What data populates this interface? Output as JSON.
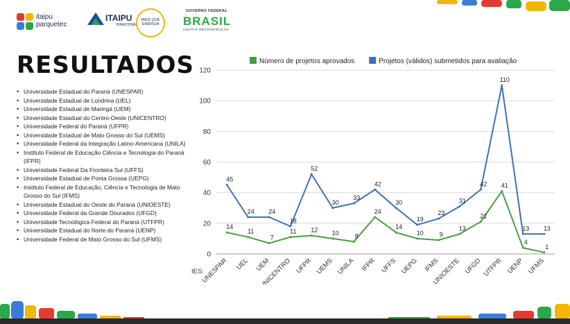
{
  "header": {
    "logo_itaipu_parquetec_line1": "itaipu",
    "logo_itaipu_parquetec_line2": "parquetec",
    "logo_itaipu_binacional": "ITAIPU",
    "logo_itaipu_binacional_sub": "BINACIONAL",
    "logo_mais_que_energia": "MAIS QUE ENERGIA",
    "logo_governo_top": "GOVERNO FEDERAL",
    "logo_governo_brasil": "BRASIL",
    "logo_governo_sub": "UNIÃO E RECONSTRUÇÃO"
  },
  "slide_title": "RESULTADOS",
  "universities": [
    "Universidade Estadual do Paraná (UNESPAR)",
    "Universidade Estadual de Londrina (UEL)",
    "Universidade Estadual de Maringá (UEM)",
    "Universidade Estadual do Centro-Oeste (UNICENTRO)",
    "Universidade Federal do Paraná (UFPR)",
    "Universidade Estadual de Mato Grosso do Sul (UEMS)",
    "Universidade Federal da Integração Latino-Americana (UNILA)",
    "Instituto Federal de Educação Ciência e Tecnologia do Paraná (IFPR)",
    "Universidade Federal Da Fronteira Sul (UFFS)",
    "Universidade Estadual de Ponta Grossa (UEPG)",
    "Instituto Federal de Educação, Ciência e Tecnologia de Mato Grosso do Sul (IFMS)",
    "Universidade Estadual do Oeste do Paraná (UNIOESTE)",
    "Universidade Federal da Grande Dourados (UFGD)",
    "Universidade Tecnológica Federal do Paraná (UTFPR)",
    "Universidade Estadual do Norte do Paraná (UENP)",
    "Universidade Federal de Mato Grosso do Sul (UFMS)"
  ],
  "chart_data": {
    "type": "line",
    "title": "",
    "xlabel": "IES:",
    "ylabel": "",
    "ylim": [
      0,
      120
    ],
    "yticks": [
      0,
      20,
      40,
      60,
      80,
      100,
      120
    ],
    "grid": true,
    "legend_position": "top",
    "categories": [
      "UNESPAR",
      "UEL",
      "UEM",
      "UNICENTRO",
      "UFPR",
      "UEMS",
      "UNILA",
      "IFPR",
      "UFFS",
      "UEPG",
      "IFMS",
      "UNIOESTE",
      "UFGD",
      "UTFPR",
      "UENP",
      "UFMS"
    ],
    "series": [
      {
        "name": "Número de projetos aprovados",
        "color": "#4a9a44",
        "values": [
          14,
          11,
          7,
          11,
          12,
          10,
          8,
          24,
          14,
          10,
          9,
          13,
          21,
          41,
          4,
          1
        ]
      },
      {
        "name": "Projetos (válidos) submetidos para avaliação",
        "color": "#3f6fb5",
        "values": [
          45,
          24,
          24,
          18,
          52,
          30,
          33,
          42,
          30,
          19,
          23,
          31,
          42,
          110,
          13,
          13
        ]
      }
    ]
  }
}
